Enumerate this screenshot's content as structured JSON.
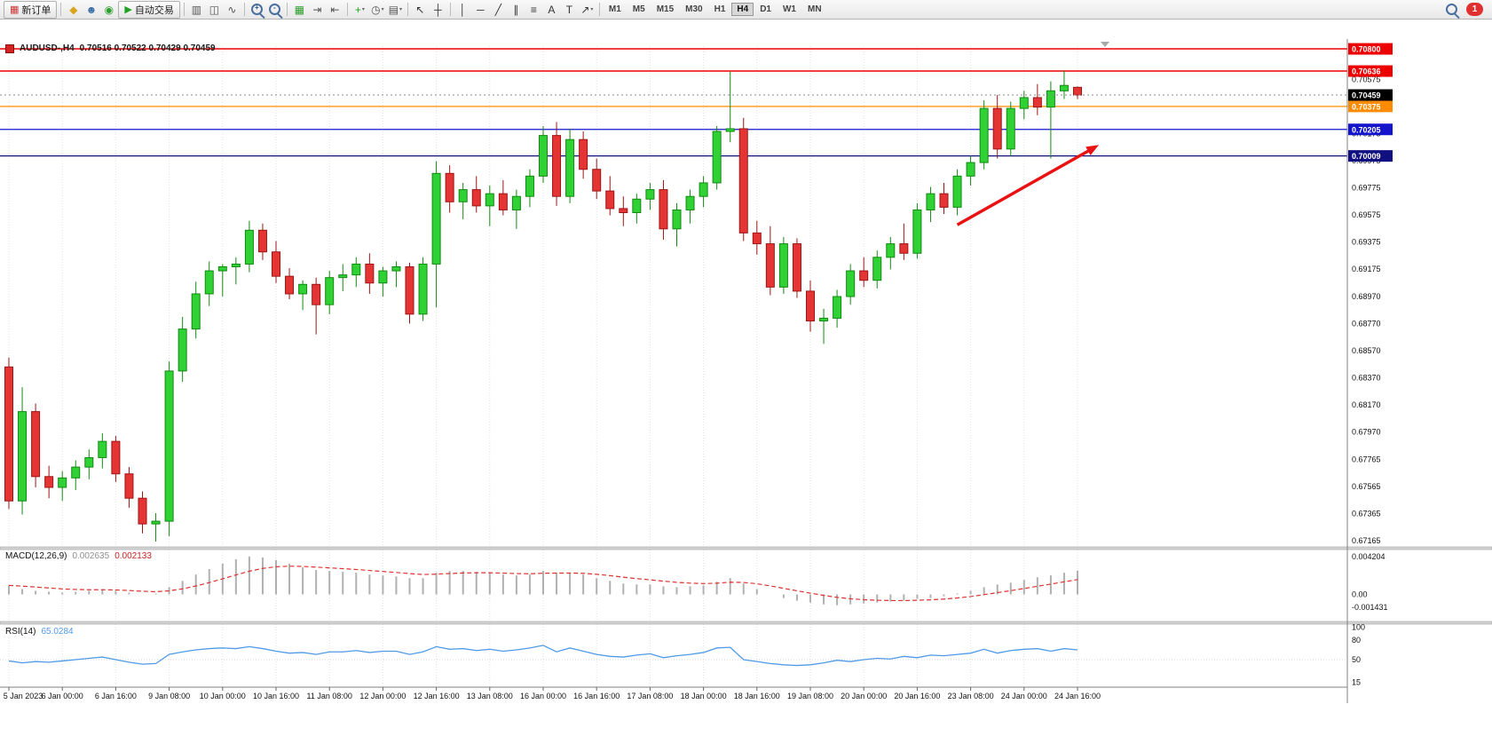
{
  "chart": {
    "symbol_period": "AUDUSD-,H4",
    "ohlc_text": "0.70516 0.70522 0.70429 0.70459"
  },
  "indicators": {
    "macd": {
      "name": "MACD(12,26,9)",
      "value_main": "0.002635",
      "value_signal": "0.002133"
    },
    "rsi": {
      "name": "RSI(14)",
      "value": "65.0284"
    }
  },
  "toolbar": {
    "items": [
      {
        "kind": "button",
        "name": "new-order-button",
        "glyph": "▦",
        "glyph_color": "#cc3333",
        "label": "新订单"
      },
      {
        "kind": "sep"
      },
      {
        "kind": "icon",
        "name": "market-gold-icon",
        "glyph": "◆",
        "color": "#d9a520"
      },
      {
        "kind": "icon",
        "name": "community-icon",
        "glyph": "☻",
        "color": "#3a6ea5"
      },
      {
        "kind": "icon",
        "name": "support-icon",
        "glyph": "◉",
        "color": "#2e9e2e"
      },
      {
        "kind": "button",
        "name": "autotrading-button",
        "glyph": "▶",
        "glyph_color": "#21a121",
        "label": "自动交易"
      },
      {
        "kind": "sep"
      },
      {
        "kind": "icon",
        "name": "bar-chart-icon",
        "glyph": "▥",
        "color": "#555555"
      },
      {
        "kind": "icon",
        "name": "candlestick-chart-icon",
        "glyph": "◫",
        "color": "#555555"
      },
      {
        "kind": "icon",
        "name": "line-chart-icon",
        "glyph": "∿",
        "color": "#555555"
      },
      {
        "kind": "sep"
      },
      {
        "kind": "icon",
        "name": "zoom-in-icon",
        "css": "mag",
        "overlay": "+"
      },
      {
        "kind": "icon",
        "name": "zoom-out-icon",
        "css": "mag",
        "overlay": "-"
      },
      {
        "kind": "sep"
      },
      {
        "kind": "icon",
        "name": "tile-windows-icon",
        "glyph": "▦",
        "color": "#2e9e2e"
      },
      {
        "kind": "icon",
        "name": "auto-scroll-icon",
        "glyph": "⇥",
        "color": "#555555"
      },
      {
        "kind": "icon",
        "name": "chart-shift-icon",
        "glyph": "⇤",
        "color": "#555555"
      },
      {
        "kind": "sep"
      },
      {
        "kind": "icon",
        "name": "indicators-icon",
        "glyph": "+",
        "color": "#21a121",
        "caret": true
      },
      {
        "kind": "icon",
        "name": "periods-icon",
        "glyph": "◷",
        "color": "#555555",
        "caret": true
      },
      {
        "kind": "icon",
        "name": "templates-icon",
        "glyph": "▤",
        "color": "#555555",
        "caret": true
      },
      {
        "kind": "sep"
      },
      {
        "kind": "icon",
        "name": "cursor-icon",
        "glyph": "↖",
        "color": "#333333"
      },
      {
        "kind": "icon",
        "name": "crosshair-icon",
        "glyph": "┼",
        "color": "#333333"
      },
      {
        "kind": "sep"
      },
      {
        "kind": "icon",
        "name": "vertical-line-icon",
        "glyph": "│",
        "color": "#333333"
      },
      {
        "kind": "icon",
        "name": "horizontal-line-icon",
        "glyph": "─",
        "color": "#333333"
      },
      {
        "kind": "icon",
        "name": "trendline-icon",
        "glyph": "╱",
        "color": "#333333"
      },
      {
        "kind": "icon",
        "name": "channel-icon",
        "glyph": "∥",
        "color": "#333333"
      },
      {
        "kind": "icon",
        "name": "fibonacci-icon",
        "glyph": "≡",
        "color": "#333333"
      },
      {
        "kind": "icon",
        "name": "text-icon",
        "glyph": "A",
        "color": "#333333"
      },
      {
        "kind": "icon",
        "name": "text-label-icon",
        "glyph": "T",
        "color": "#333333"
      },
      {
        "kind": "icon",
        "name": "arrow-objects-icon",
        "glyph": "↗",
        "color": "#333333",
        "caret": true
      },
      {
        "kind": "sep"
      },
      {
        "kind": "tf",
        "label": "M1"
      },
      {
        "kind": "tf",
        "label": "M5"
      },
      {
        "kind": "tf",
        "label": "M15"
      },
      {
        "kind": "tf",
        "label": "M30"
      },
      {
        "kind": "tf",
        "label": "H1"
      },
      {
        "kind": "tf",
        "label": "H4",
        "active": true
      },
      {
        "kind": "tf",
        "label": "D1"
      },
      {
        "kind": "tf",
        "label": "W1"
      },
      {
        "kind": "tf",
        "label": "MN"
      },
      {
        "kind": "spacer"
      },
      {
        "kind": "icon",
        "name": "search-icon",
        "css": "mag"
      },
      {
        "kind": "badge",
        "name": "notification-badge",
        "label": "1"
      }
    ]
  },
  "chart_data": [
    {
      "type": "candlestick",
      "symbol": "AUDUSD-",
      "period": "H4",
      "current": {
        "open": 0.70516,
        "high": 0.70522,
        "low": 0.70429,
        "close": 0.70459
      },
      "ylim": [
        0.6714,
        0.7082
      ],
      "up_color": "#2fd134",
      "down_color": "#e43434",
      "candles": [
        [
          0.6845,
          0.6852,
          0.674,
          0.6746
        ],
        [
          0.6746,
          0.683,
          0.6736,
          0.6812
        ],
        [
          0.6812,
          0.6818,
          0.6756,
          0.6764
        ],
        [
          0.6764,
          0.6772,
          0.6748,
          0.6756
        ],
        [
          0.6756,
          0.6768,
          0.6746,
          0.6763
        ],
        [
          0.6763,
          0.6776,
          0.6754,
          0.6771
        ],
        [
          0.6771,
          0.6784,
          0.6762,
          0.6778
        ],
        [
          0.6778,
          0.6796,
          0.677,
          0.679
        ],
        [
          0.679,
          0.6794,
          0.676,
          0.6766
        ],
        [
          0.6766,
          0.6771,
          0.6741,
          0.6748
        ],
        [
          0.6748,
          0.6753,
          0.6722,
          0.6729
        ],
        [
          0.6729,
          0.6737,
          0.6716,
          0.6731
        ],
        [
          0.6731,
          0.6849,
          0.672,
          0.6842
        ],
        [
          0.6842,
          0.6882,
          0.6834,
          0.6873
        ],
        [
          0.6873,
          0.6908,
          0.6866,
          0.6899
        ],
        [
          0.6899,
          0.6923,
          0.689,
          0.6916
        ],
        [
          0.6916,
          0.6921,
          0.6897,
          0.6919
        ],
        [
          0.6919,
          0.6926,
          0.6906,
          0.6921
        ],
        [
          0.6921,
          0.6953,
          0.6915,
          0.6946
        ],
        [
          0.6946,
          0.6951,
          0.6924,
          0.693
        ],
        [
          0.693,
          0.6938,
          0.6907,
          0.6912
        ],
        [
          0.6912,
          0.6918,
          0.6895,
          0.6899
        ],
        [
          0.6899,
          0.6909,
          0.6887,
          0.6906
        ],
        [
          0.6906,
          0.6911,
          0.6869,
          0.6891
        ],
        [
          0.6891,
          0.6916,
          0.6884,
          0.6911
        ],
        [
          0.6911,
          0.6921,
          0.6901,
          0.6913
        ],
        [
          0.6913,
          0.6926,
          0.6904,
          0.6921
        ],
        [
          0.6921,
          0.6929,
          0.6899,
          0.6907
        ],
        [
          0.6907,
          0.6919,
          0.6897,
          0.6916
        ],
        [
          0.6916,
          0.6923,
          0.6904,
          0.6919
        ],
        [
          0.6919,
          0.6922,
          0.6877,
          0.6884
        ],
        [
          0.6884,
          0.6926,
          0.6879,
          0.6921
        ],
        [
          0.6921,
          0.6997,
          0.6889,
          0.6988
        ],
        [
          0.6988,
          0.6994,
          0.6959,
          0.6967
        ],
        [
          0.6967,
          0.6981,
          0.6954,
          0.6976
        ],
        [
          0.6976,
          0.6986,
          0.6959,
          0.6964
        ],
        [
          0.6964,
          0.6979,
          0.6949,
          0.6973
        ],
        [
          0.6973,
          0.6983,
          0.6957,
          0.6961
        ],
        [
          0.6961,
          0.6976,
          0.6947,
          0.6971
        ],
        [
          0.6971,
          0.6991,
          0.6963,
          0.6986
        ],
        [
          0.6986,
          0.7023,
          0.6981,
          0.7016
        ],
        [
          0.7016,
          0.7026,
          0.6964,
          0.6971
        ],
        [
          0.6971,
          0.7021,
          0.6966,
          0.7013
        ],
        [
          0.7013,
          0.7019,
          0.6984,
          0.6991
        ],
        [
          0.6991,
          0.6999,
          0.6969,
          0.6975
        ],
        [
          0.6975,
          0.6986,
          0.6957,
          0.6962
        ],
        [
          0.6962,
          0.6971,
          0.6949,
          0.6959
        ],
        [
          0.6959,
          0.6973,
          0.6951,
          0.6969
        ],
        [
          0.6969,
          0.6981,
          0.6961,
          0.6976
        ],
        [
          0.6976,
          0.6983,
          0.6939,
          0.6947
        ],
        [
          0.6947,
          0.6966,
          0.6934,
          0.6961
        ],
        [
          0.6961,
          0.6976,
          0.6951,
          0.6971
        ],
        [
          0.6971,
          0.6986,
          0.6963,
          0.6981
        ],
        [
          0.6981,
          0.7023,
          0.6976,
          0.7019
        ],
        [
          0.7019,
          0.7063,
          0.7011,
          0.7021
        ],
        [
          0.7021,
          0.7029,
          0.6938,
          0.6944
        ],
        [
          0.6944,
          0.6953,
          0.6928,
          0.6936
        ],
        [
          0.6936,
          0.6949,
          0.6898,
          0.6904
        ],
        [
          0.6904,
          0.6941,
          0.6899,
          0.6936
        ],
        [
          0.6936,
          0.694,
          0.6896,
          0.6901
        ],
        [
          0.6901,
          0.6909,
          0.6871,
          0.6879
        ],
        [
          0.6879,
          0.6888,
          0.6862,
          0.6881
        ],
        [
          0.6881,
          0.6902,
          0.6874,
          0.6897
        ],
        [
          0.6897,
          0.6921,
          0.6891,
          0.6916
        ],
        [
          0.6916,
          0.6926,
          0.6904,
          0.6909
        ],
        [
          0.6909,
          0.6931,
          0.6903,
          0.6926
        ],
        [
          0.6926,
          0.6941,
          0.6917,
          0.6936
        ],
        [
          0.6936,
          0.6951,
          0.6924,
          0.6929
        ],
        [
          0.6929,
          0.6966,
          0.6925,
          0.6961
        ],
        [
          0.6961,
          0.6978,
          0.6952,
          0.6973
        ],
        [
          0.6973,
          0.6981,
          0.6958,
          0.6963
        ],
        [
          0.6963,
          0.6991,
          0.6957,
          0.6986
        ],
        [
          0.6986,
          0.7001,
          0.6979,
          0.6996
        ],
        [
          0.6996,
          0.7042,
          0.6991,
          0.7036
        ],
        [
          0.7036,
          0.7046,
          0.6999,
          0.7006
        ],
        [
          0.7006,
          0.7041,
          0.7001,
          0.7036
        ],
        [
          0.7036,
          0.7049,
          0.7028,
          0.7044
        ],
        [
          0.7044,
          0.7054,
          0.7031,
          0.7037
        ],
        [
          0.7037,
          0.7056,
          0.6999,
          0.7049
        ],
        [
          0.7049,
          0.7064,
          0.7043,
          0.7053
        ],
        [
          0.70516,
          0.70522,
          0.70429,
          0.70459
        ]
      ],
      "levels": [
        {
          "price": 0.708,
          "label": "0.70800",
          "color": "#ee0000",
          "width": 1.5
        },
        {
          "price": 0.70636,
          "label": "0.70636",
          "color": "#ee0000",
          "width": 1.5
        },
        {
          "price": 0.70375,
          "label": "0.70375",
          "color": "#ff8c00",
          "width": 1.2
        },
        {
          "price": 0.70205,
          "label": "0.70205",
          "color": "#1414cc",
          "width": 1.2
        },
        {
          "price": 0.70009,
          "label": "0.70009",
          "color": "#101080",
          "width": 1.2
        }
      ],
      "current_price": {
        "value": 0.70459,
        "label": "0.70459",
        "badge_color": "#000000"
      },
      "annotation_arrow": {
        "from": {
          "index": 71.0,
          "price": 0.695
        },
        "to": {
          "index": 81.6,
          "price": 0.7009
        },
        "color": "#e81212"
      },
      "y_axis_labels": [
        "0.70575",
        "0.70175",
        "0.69975",
        "0.69775",
        "0.69575",
        "0.69375",
        "0.69175",
        "0.68970",
        "0.68770",
        "0.68570",
        "0.68370",
        "0.68170",
        "0.67970",
        "0.67765",
        "0.67565",
        "0.67365",
        "0.67165"
      ],
      "x_labels": {
        "step": 4,
        "labels": [
          "5 Jan 2023",
          "6 Jan 00:00",
          "6 Jan 16:00",
          "9 Jan 08:00",
          "10 Jan 00:00",
          "10 Jan 16:00",
          "11 Jan 08:00",
          "12 Jan 00:00",
          "12 Jan 16:00",
          "13 Jan 08:00",
          "16 Jan 00:00",
          "16 Jan 16:00",
          "17 Jan 08:00",
          "18 Jan 00:00",
          "18 Jan 16:00",
          "19 Jan 08:00",
          "20 Jan 00:00",
          "20 Jan 16:00",
          "23 Jan 08:00",
          "24 Jan 00:00",
          "24 Jan 16:00"
        ]
      }
    },
    {
      "type": "macd-histogram",
      "label": "MACD(12,26,9)",
      "value_main": 0.002635,
      "value_signal": 0.002133,
      "signal_period": 9,
      "ylim": [
        -0.0028,
        0.00477
      ],
      "histogram_color": "#b0b0b0",
      "signal_color": "#e03030",
      "macd": [
        0.001,
        0.0006,
        0.0004,
        0.0003,
        0.0002,
        0.0003,
        0.0004,
        0.0005,
        0.0004,
        0.0002,
        0.0,
        0.0001,
        0.0008,
        0.0015,
        0.0022,
        0.0028,
        0.0034,
        0.0039,
        0.0042,
        0.0041,
        0.0038,
        0.0034,
        0.003,
        0.0027,
        0.0026,
        0.0025,
        0.0024,
        0.0022,
        0.0021,
        0.002,
        0.0018,
        0.0018,
        0.0024,
        0.0026,
        0.0026,
        0.0025,
        0.0024,
        0.0022,
        0.0021,
        0.0022,
        0.0026,
        0.0024,
        0.0024,
        0.0022,
        0.0018,
        0.0015,
        0.0012,
        0.0011,
        0.0011,
        0.0009,
        0.0008,
        0.0009,
        0.001,
        0.0014,
        0.0018,
        0.0012,
        0.0006,
        0.0,
        -0.0004,
        -0.0007,
        -0.0009,
        -0.0011,
        -0.0012,
        -0.0011,
        -0.001,
        -0.0009,
        -0.0008,
        -0.0007,
        -0.0005,
        -0.0004,
        -0.0002,
        0.0001,
        0.0004,
        0.0008,
        0.0011,
        0.0013,
        0.0016,
        0.0019,
        0.0021,
        0.0024,
        0.002635
      ],
      "y_axis_labels": [
        "0.004204",
        "0.00",
        "-0.001431"
      ]
    },
    {
      "type": "line",
      "label": "RSI(14)",
      "value": 65.0284,
      "ylim": [
        13,
        102
      ],
      "line_color": "#4f9be8",
      "values": [
        48,
        45,
        47,
        46,
        48,
        50,
        52,
        54,
        50,
        46,
        43,
        44,
        58,
        62,
        65,
        67,
        68,
        67,
        70,
        67,
        63,
        60,
        61,
        58,
        62,
        62,
        64,
        61,
        63,
        63,
        58,
        62,
        70,
        66,
        67,
        64,
        66,
        63,
        65,
        68,
        72,
        62,
        68,
        63,
        58,
        55,
        54,
        57,
        59,
        53,
        56,
        58,
        61,
        68,
        69,
        50,
        47,
        44,
        42,
        41,
        42,
        45,
        49,
        47,
        50,
        52,
        51,
        55,
        53,
        57,
        56,
        58,
        60,
        66,
        60,
        64,
        66,
        67,
        63,
        67,
        65.03
      ],
      "y_axis_labels": [
        "100",
        "80",
        "50",
        "15"
      ]
    }
  ]
}
